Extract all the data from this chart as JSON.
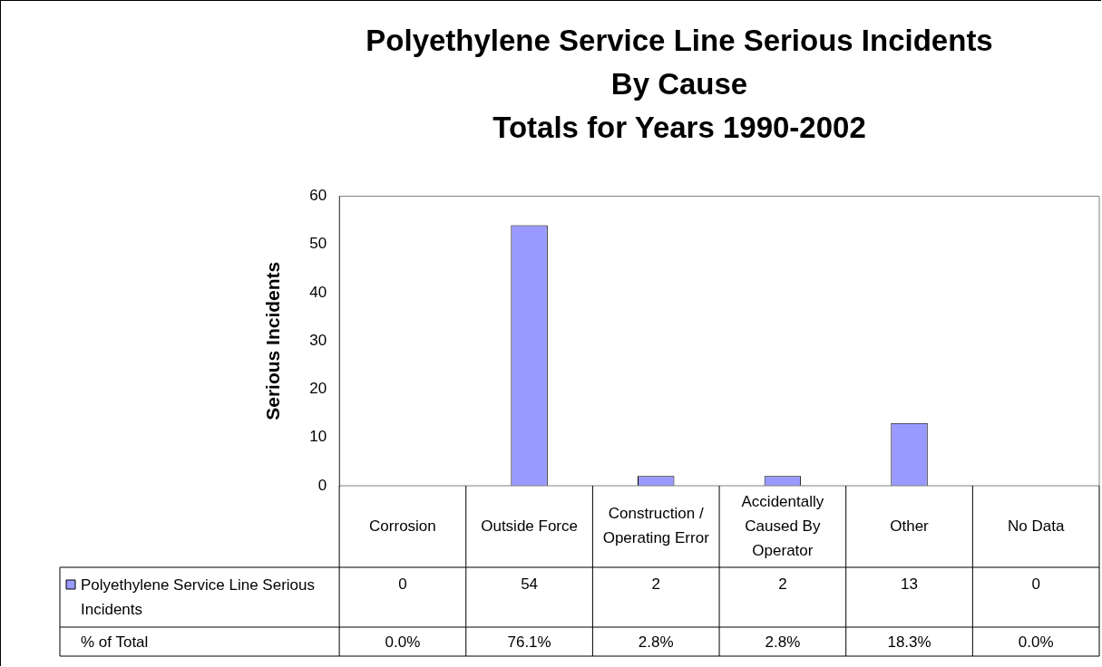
{
  "chart_data": {
    "type": "bar",
    "title": "Polyethylene Service Line Serious Incidents\nBy Cause\nTotals for Years 1990-2002",
    "ylabel": "Serious Incidents",
    "categories": [
      "Corrosion",
      "Outside Force",
      "Construction / Operating Error",
      "Accidentally Caused By Operator",
      "Other",
      "No Data"
    ],
    "series": [
      {
        "name": "Polyethylene Service Line Serious Incidents",
        "color": "#9999ff",
        "values": [
          0,
          54,
          2,
          2,
          13,
          0
        ]
      }
    ],
    "ylim": [
      0,
      60
    ],
    "yticks": [
      0,
      10,
      20,
      30,
      40,
      50,
      60
    ],
    "data_labels": true,
    "annotations": [
      "% of Total",
      "0.0%",
      "76.1%",
      "2.8%",
      "2.8%",
      "18.3%",
      "0.0%"
    ]
  }
}
